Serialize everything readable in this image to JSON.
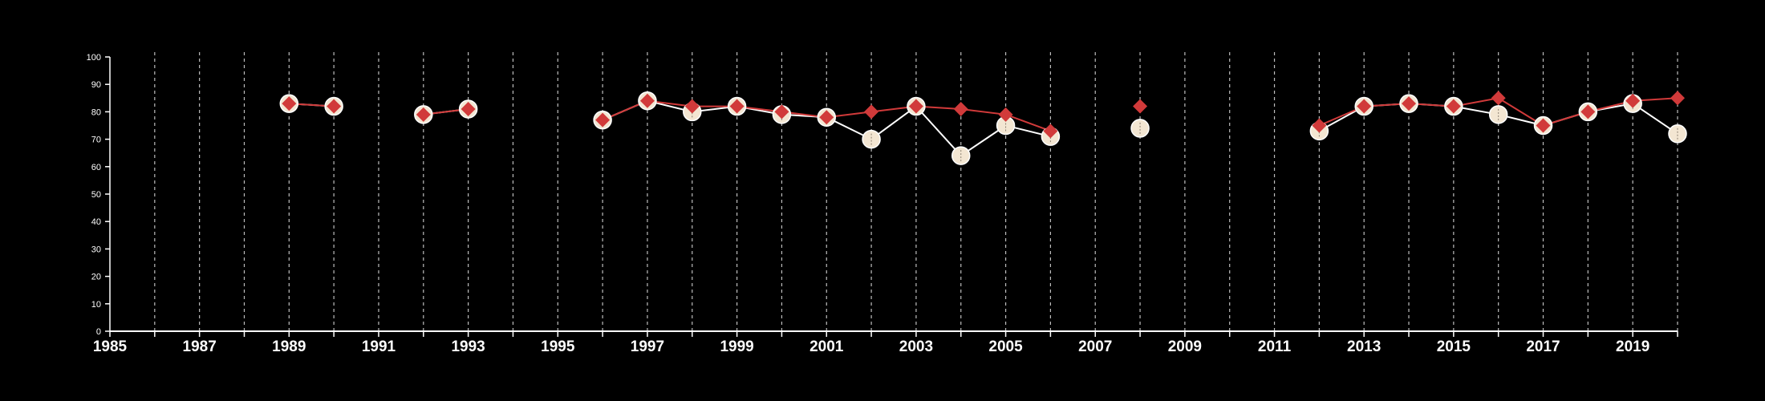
{
  "colors": {
    "background": "#000000",
    "axis": "#ffffff",
    "grid": "#bdbdbd",
    "series_a": "#d13a3a",
    "series_b_fill": "#f3e6d2",
    "series_b_line": "#ffffff"
  },
  "chart_data": {
    "type": "line",
    "title": "",
    "xlabel": "",
    "ylabel": "",
    "xlim": [
      1985,
      2020
    ],
    "ylim": [
      0,
      100
    ],
    "y_ticks": [
      0,
      10,
      20,
      30,
      40,
      50,
      60,
      70,
      80,
      90,
      100
    ],
    "x_tick_labels": [
      1985,
      1987,
      1989,
      1991,
      1993,
      1995,
      1997,
      1999,
      2001,
      2003,
      2005,
      2007,
      2009,
      2011,
      2013,
      2015,
      2017,
      2019
    ],
    "x_gridlines": [
      1986,
      1987,
      1988,
      1989,
      1990,
      1991,
      1992,
      1993,
      1994,
      1995,
      1996,
      1997,
      1998,
      1999,
      2000,
      2001,
      2002,
      2003,
      2004,
      2005,
      2006,
      2007,
      2008,
      2009,
      2010,
      2011,
      2012,
      2013,
      2014,
      2015,
      2016,
      2017,
      2018,
      2019,
      2020
    ],
    "grid": "vertical dashed",
    "legend": "none",
    "series": [
      {
        "marker": "circle",
        "color": "#f3e6d2",
        "line_color": "#ffffff",
        "segments": [
          [
            [
              1989,
              83
            ],
            [
              1990,
              82
            ]
          ],
          [
            [
              1992,
              79
            ],
            [
              1993,
              81
            ]
          ],
          [
            [
              1996,
              77
            ],
            [
              1997,
              84
            ],
            [
              1998,
              80
            ],
            [
              1999,
              82
            ],
            [
              2000,
              79
            ],
            [
              2001,
              78
            ],
            [
              2002,
              70
            ],
            [
              2003,
              82
            ],
            [
              2004,
              64
            ],
            [
              2005,
              75
            ],
            [
              2006,
              71
            ]
          ],
          [
            [
              2008,
              74
            ]
          ],
          [
            [
              2012,
              73
            ],
            [
              2013,
              82
            ],
            [
              2014,
              83
            ],
            [
              2015,
              82
            ],
            [
              2016,
              79
            ],
            [
              2017,
              75
            ],
            [
              2018,
              80
            ],
            [
              2019,
              83
            ],
            [
              2020,
              72
            ]
          ]
        ]
      },
      {
        "marker": "diamond",
        "color": "#d13a3a",
        "line_color": "#d13a3a",
        "segments": [
          [
            [
              1989,
              83
            ],
            [
              1990,
              82
            ]
          ],
          [
            [
              1992,
              79
            ],
            [
              1993,
              81
            ]
          ],
          [
            [
              1996,
              77
            ],
            [
              1997,
              84
            ],
            [
              1998,
              82
            ],
            [
              1999,
              82
            ],
            [
              2000,
              80
            ],
            [
              2001,
              78
            ],
            [
              2002,
              80
            ],
            [
              2003,
              82
            ],
            [
              2004,
              81
            ],
            [
              2005,
              79
            ],
            [
              2006,
              73
            ]
          ],
          [
            [
              2008,
              82
            ]
          ],
          [
            [
              2012,
              75
            ],
            [
              2013,
              82
            ],
            [
              2014,
              83
            ],
            [
              2015,
              82
            ],
            [
              2016,
              85
            ],
            [
              2017,
              75
            ],
            [
              2018,
              80
            ],
            [
              2019,
              84
            ],
            [
              2020,
              85
            ]
          ]
        ]
      }
    ]
  }
}
